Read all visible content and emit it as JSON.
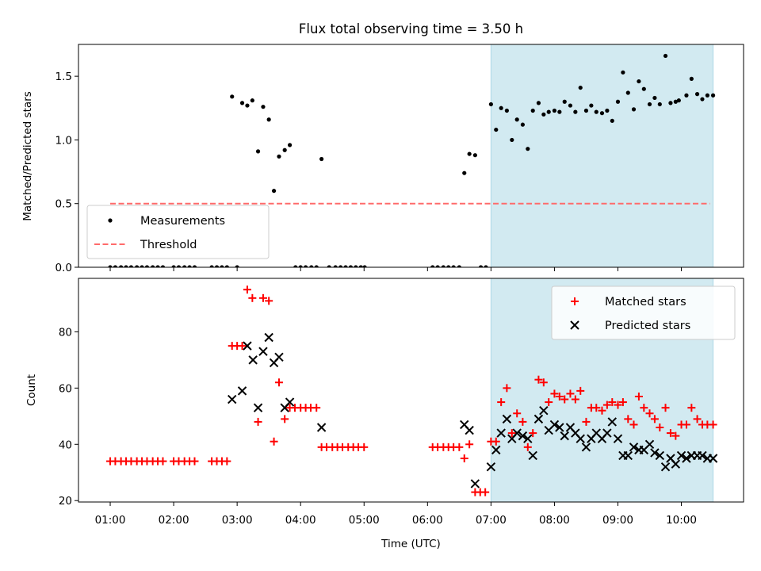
{
  "chart_data": [
    {
      "type": "scatter",
      "title": "Flux total observing time = 3.50 h",
      "xlabel": "",
      "ylabel": "Matched/Predicted stars",
      "ylim": [
        0,
        1.75
      ],
      "xlim": [
        0.5,
        10.98
      ],
      "yticks": [
        0.0,
        0.5,
        1.0,
        1.5
      ],
      "ytick_labels": [
        "0.0",
        "0.5",
        "1.0",
        "1.5"
      ],
      "xticks_hours": [
        1,
        2,
        3,
        4,
        5,
        6,
        7,
        8,
        9,
        10
      ],
      "shaded_interval": {
        "x": [
          7.0,
          10.5
        ],
        "color": "#add8e6"
      },
      "legend": {
        "position": "lower-left",
        "entries": [
          "Measurements",
          "Threshold"
        ]
      },
      "threshold": {
        "name": "Threshold",
        "y": 0.5,
        "x": [
          1.0,
          10.45
        ],
        "color": "#ff6b6b"
      },
      "series": [
        {
          "name": "Measurements",
          "color": "#000000",
          "points": [
            [
              1.0,
              0
            ],
            [
              1.08,
              0
            ],
            [
              1.17,
              0
            ],
            [
              1.25,
              0
            ],
            [
              1.33,
              0
            ],
            [
              1.42,
              0
            ],
            [
              1.5,
              0
            ],
            [
              1.58,
              0
            ],
            [
              1.67,
              0
            ],
            [
              1.75,
              0
            ],
            [
              1.83,
              0
            ],
            [
              2.0,
              0
            ],
            [
              2.08,
              0
            ],
            [
              2.17,
              0
            ],
            [
              2.25,
              0
            ],
            [
              2.33,
              0
            ],
            [
              2.6,
              0
            ],
            [
              2.68,
              0
            ],
            [
              2.76,
              0
            ],
            [
              2.84,
              0
            ],
            [
              3.0,
              0
            ],
            [
              2.92,
              1.34
            ],
            [
              3.08,
              1.29
            ],
            [
              3.16,
              1.27
            ],
            [
              3.24,
              1.31
            ],
            [
              3.33,
              0.91
            ],
            [
              3.41,
              1.26
            ],
            [
              3.5,
              1.16
            ],
            [
              3.58,
              0.6
            ],
            [
              3.66,
              0.87
            ],
            [
              3.75,
              0.92
            ],
            [
              3.83,
              0.96
            ],
            [
              4.33,
              0.85
            ],
            [
              3.92,
              0
            ],
            [
              4.0,
              0
            ],
            [
              4.08,
              0
            ],
            [
              4.17,
              0
            ],
            [
              4.25,
              0
            ],
            [
              4.45,
              0
            ],
            [
              4.55,
              0
            ],
            [
              4.63,
              0
            ],
            [
              4.71,
              0
            ],
            [
              4.79,
              0
            ],
            [
              4.87,
              0
            ],
            [
              4.95,
              0
            ],
            [
              5.01,
              0
            ],
            [
              6.08,
              0
            ],
            [
              6.16,
              0
            ],
            [
              6.25,
              0
            ],
            [
              6.33,
              0
            ],
            [
              6.41,
              0
            ],
            [
              6.5,
              0
            ],
            [
              6.58,
              0.74
            ],
            [
              6.66,
              0.89
            ],
            [
              6.75,
              0.88
            ],
            [
              6.84,
              0
            ],
            [
              6.92,
              0
            ],
            [
              7.0,
              1.28
            ],
            [
              7.08,
              1.08
            ],
            [
              7.16,
              1.25
            ],
            [
              7.25,
              1.23
            ],
            [
              7.33,
              1.0
            ],
            [
              7.41,
              1.16
            ],
            [
              7.5,
              1.12
            ],
            [
              7.58,
              0.93
            ],
            [
              7.66,
              1.23
            ],
            [
              7.75,
              1.29
            ],
            [
              7.83,
              1.2
            ],
            [
              7.91,
              1.22
            ],
            [
              8.0,
              1.23
            ],
            [
              8.08,
              1.22
            ],
            [
              8.16,
              1.3
            ],
            [
              8.25,
              1.27
            ],
            [
              8.33,
              1.22
            ],
            [
              8.41,
              1.41
            ],
            [
              8.5,
              1.23
            ],
            [
              8.58,
              1.27
            ],
            [
              8.66,
              1.22
            ],
            [
              8.75,
              1.21
            ],
            [
              8.83,
              1.23
            ],
            [
              8.91,
              1.15
            ],
            [
              9.0,
              1.3
            ],
            [
              9.08,
              1.53
            ],
            [
              9.16,
              1.37
            ],
            [
              9.25,
              1.24
            ],
            [
              9.33,
              1.46
            ],
            [
              9.41,
              1.4
            ],
            [
              9.5,
              1.28
            ],
            [
              9.58,
              1.33
            ],
            [
              9.66,
              1.28
            ],
            [
              9.75,
              1.66
            ],
            [
              9.83,
              1.29
            ],
            [
              9.91,
              1.3
            ],
            [
              9.96,
              1.31
            ],
            [
              10.08,
              1.35
            ],
            [
              10.16,
              1.48
            ],
            [
              10.25,
              1.36
            ],
            [
              10.33,
              1.32
            ],
            [
              10.41,
              1.35
            ],
            [
              10.5,
              1.35
            ]
          ]
        }
      ]
    },
    {
      "type": "scatter",
      "title": "",
      "xlabel": "Time (UTC)",
      "ylabel": "Count",
      "ylim": [
        19.5,
        99
      ],
      "xlim": [
        0.5,
        10.98
      ],
      "yticks": [
        20,
        40,
        60,
        80
      ],
      "ytick_labels": [
        "20",
        "40",
        "60",
        "80"
      ],
      "xticks_hours": [
        1,
        2,
        3,
        4,
        5,
        6,
        7,
        8,
        9,
        10
      ],
      "xtick_labels": [
        "01:00",
        "02:00",
        "03:00",
        "04:00",
        "05:00",
        "06:00",
        "07:00",
        "08:00",
        "09:00",
        "10:00"
      ],
      "shaded_interval": {
        "x": [
          7.0,
          10.5
        ],
        "color": "#add8e6"
      },
      "legend": {
        "position": "upper-right",
        "entries": [
          "Matched stars",
          "Predicted stars"
        ]
      },
      "series": [
        {
          "name": "Matched stars",
          "marker": "plus",
          "color": "#ff0000",
          "points": [
            [
              1.0,
              34
            ],
            [
              1.08,
              34
            ],
            [
              1.17,
              34
            ],
            [
              1.25,
              34
            ],
            [
              1.33,
              34
            ],
            [
              1.42,
              34
            ],
            [
              1.5,
              34
            ],
            [
              1.58,
              34
            ],
            [
              1.67,
              34
            ],
            [
              1.75,
              34
            ],
            [
              1.83,
              34
            ],
            [
              2.0,
              34
            ],
            [
              2.08,
              34
            ],
            [
              2.17,
              34
            ],
            [
              2.25,
              34
            ],
            [
              2.33,
              34
            ],
            [
              2.6,
              34
            ],
            [
              2.68,
              34
            ],
            [
              2.76,
              34
            ],
            [
              2.84,
              34
            ],
            [
              2.92,
              75
            ],
            [
              3.0,
              75
            ],
            [
              3.08,
              75
            ],
            [
              3.16,
              95
            ],
            [
              3.24,
              92
            ],
            [
              3.33,
              48
            ],
            [
              3.41,
              92
            ],
            [
              3.5,
              91
            ],
            [
              3.58,
              41
            ],
            [
              3.66,
              62
            ],
            [
              3.75,
              49
            ],
            [
              3.83,
              53
            ],
            [
              3.91,
              53
            ],
            [
              4.0,
              53
            ],
            [
              4.08,
              53
            ],
            [
              4.16,
              53
            ],
            [
              4.25,
              53
            ],
            [
              4.33,
              39
            ],
            [
              4.41,
              39
            ],
            [
              4.5,
              39
            ],
            [
              4.58,
              39
            ],
            [
              4.66,
              39
            ],
            [
              4.75,
              39
            ],
            [
              4.83,
              39
            ],
            [
              4.91,
              39
            ],
            [
              5.0,
              39
            ],
            [
              6.08,
              39
            ],
            [
              6.16,
              39
            ],
            [
              6.25,
              39
            ],
            [
              6.33,
              39
            ],
            [
              6.41,
              39
            ],
            [
              6.5,
              39
            ],
            [
              6.58,
              35
            ],
            [
              6.66,
              40
            ],
            [
              6.75,
              23
            ],
            [
              6.83,
              23
            ],
            [
              6.91,
              23
            ],
            [
              7.0,
              41
            ],
            [
              7.08,
              41
            ],
            [
              7.16,
              55
            ],
            [
              7.25,
              60
            ],
            [
              7.33,
              44
            ],
            [
              7.41,
              51
            ],
            [
              7.5,
              48
            ],
            [
              7.58,
              39
            ],
            [
              7.66,
              44
            ],
            [
              7.75,
              63
            ],
            [
              7.83,
              62
            ],
            [
              7.91,
              55
            ],
            [
              8.0,
              58
            ],
            [
              8.08,
              57
            ],
            [
              8.16,
              56
            ],
            [
              8.25,
              58
            ],
            [
              8.33,
              56
            ],
            [
              8.41,
              59
            ],
            [
              8.5,
              48
            ],
            [
              8.58,
              53
            ],
            [
              8.66,
              53
            ],
            [
              8.75,
              52
            ],
            [
              8.83,
              54
            ],
            [
              8.91,
              55
            ],
            [
              9.0,
              54
            ],
            [
              9.08,
              55
            ],
            [
              9.16,
              49
            ],
            [
              9.25,
              47
            ],
            [
              9.33,
              57
            ],
            [
              9.41,
              53
            ],
            [
              9.5,
              51
            ],
            [
              9.58,
              49
            ],
            [
              9.66,
              46
            ],
            [
              9.75,
              53
            ],
            [
              9.83,
              44
            ],
            [
              9.91,
              43
            ],
            [
              10.0,
              47
            ],
            [
              10.08,
              47
            ],
            [
              10.16,
              53
            ],
            [
              10.25,
              49
            ],
            [
              10.33,
              47
            ],
            [
              10.41,
              47
            ],
            [
              10.5,
              47
            ]
          ]
        },
        {
          "name": "Predicted stars",
          "marker": "x",
          "color": "#000000",
          "points": [
            [
              2.92,
              56
            ],
            [
              3.08,
              59
            ],
            [
              3.16,
              75
            ],
            [
              3.25,
              70
            ],
            [
              3.33,
              53
            ],
            [
              3.41,
              73
            ],
            [
              3.5,
              78
            ],
            [
              3.58,
              69
            ],
            [
              3.66,
              71
            ],
            [
              3.75,
              53
            ],
            [
              3.83,
              55
            ],
            [
              4.33,
              46
            ],
            [
              6.58,
              47
            ],
            [
              6.66,
              45
            ],
            [
              6.75,
              26
            ],
            [
              7.0,
              32
            ],
            [
              7.08,
              38
            ],
            [
              7.16,
              44
            ],
            [
              7.25,
              49
            ],
            [
              7.33,
              42
            ],
            [
              7.41,
              44
            ],
            [
              7.5,
              43
            ],
            [
              7.58,
              42
            ],
            [
              7.66,
              36
            ],
            [
              7.75,
              49
            ],
            [
              7.83,
              52
            ],
            [
              7.91,
              45
            ],
            [
              8.0,
              47
            ],
            [
              8.08,
              46
            ],
            [
              8.16,
              43
            ],
            [
              8.25,
              46
            ],
            [
              8.33,
              44
            ],
            [
              8.41,
              42
            ],
            [
              8.5,
              39
            ],
            [
              8.58,
              42
            ],
            [
              8.66,
              44
            ],
            [
              8.75,
              42
            ],
            [
              8.83,
              44
            ],
            [
              8.91,
              48
            ],
            [
              9.0,
              42
            ],
            [
              9.08,
              36
            ],
            [
              9.16,
              36
            ],
            [
              9.25,
              39
            ],
            [
              9.33,
              38
            ],
            [
              9.41,
              38
            ],
            [
              9.5,
              40
            ],
            [
              9.58,
              37
            ],
            [
              9.66,
              36
            ],
            [
              9.75,
              32
            ],
            [
              9.83,
              35
            ],
            [
              9.91,
              33
            ],
            [
              10.0,
              36
            ],
            [
              10.08,
              35
            ],
            [
              10.16,
              36
            ],
            [
              10.25,
              36
            ],
            [
              10.33,
              36
            ],
            [
              10.41,
              35
            ],
            [
              10.5,
              35
            ]
          ]
        }
      ]
    }
  ]
}
